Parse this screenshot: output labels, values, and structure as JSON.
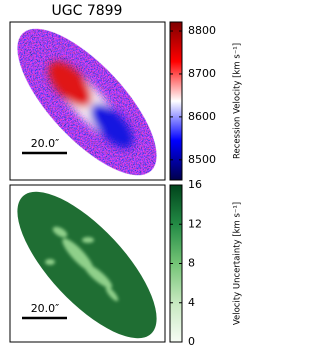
{
  "chart_data": [
    {
      "type": "image",
      "title": "UGC 7899",
      "colorbar_label": "Recession Velocity [km s⁻¹]",
      "clim": [
        8453,
        8821
      ],
      "cticks": [
        8500,
        8600,
        8700,
        8800
      ],
      "colors": [
        "#00004c",
        "#0000ff",
        "#ffffff",
        "#ff0000",
        "#7f0000"
      ],
      "scale_bar_label": "20.0″"
    },
    {
      "type": "image",
      "colorbar_label": "Velocity Uncertainty [km s⁻¹]",
      "clim": [
        0,
        16
      ],
      "cticks": [
        0,
        4,
        8,
        12,
        16
      ],
      "colors": [
        "#f7fcf5",
        "#c7e9c0",
        "#74c476",
        "#238b45",
        "#00441b"
      ],
      "scale_bar_label": "20.0″"
    }
  ]
}
